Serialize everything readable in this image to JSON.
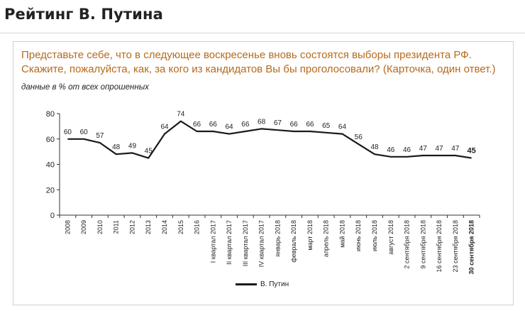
{
  "page": {
    "title": "Рейтинг В. Путина"
  },
  "question": {
    "text": "Представьте себе, что в следующее воскресенье вновь состоятся выборы президента РФ. Скажите, пожалуйста, как, за кого из кандидатов Вы бы проголосовали?",
    "note": "(Карточка, один ответ.)"
  },
  "subtitle": "данные в % от всех опрошенных",
  "colors": {
    "title": "#222222",
    "question": "#b56a1d",
    "line": "#1a1a1a",
    "axis": "#333333"
  },
  "chart_data": {
    "type": "line",
    "title": "Рейтинг В. Путина",
    "xlabel": "",
    "ylabel": "",
    "ylim": [
      0,
      80
    ],
    "yticks": [
      0,
      20,
      40,
      60,
      80
    ],
    "grid": false,
    "legend_position": "bottom-center",
    "categories": [
      "2008",
      "2009",
      "2010",
      "2011",
      "2012",
      "2013",
      "2014",
      "2015",
      "2016",
      "I квартал 2017",
      "II квартал 2017",
      "III квартал 2017",
      "IV квартал 2017",
      "январь 2018",
      "февраль 2018",
      "март 2018",
      "апрель 2018",
      "май 2018",
      "июнь 2018",
      "июль 2018",
      "август 2018",
      "2 сентября 2018",
      "9 сентября 2018",
      "16 сентября 2018",
      "23 сентября 2018",
      "30 сентября 2018"
    ],
    "series": [
      {
        "name": "В. Путин",
        "values": [
          60,
          60,
          57,
          48,
          49,
          45,
          64,
          74,
          66,
          66,
          64,
          66,
          68,
          67,
          66,
          66,
          65,
          64,
          56,
          48,
          46,
          46,
          47,
          47,
          47,
          45
        ]
      }
    ],
    "emphasized_last": true
  }
}
